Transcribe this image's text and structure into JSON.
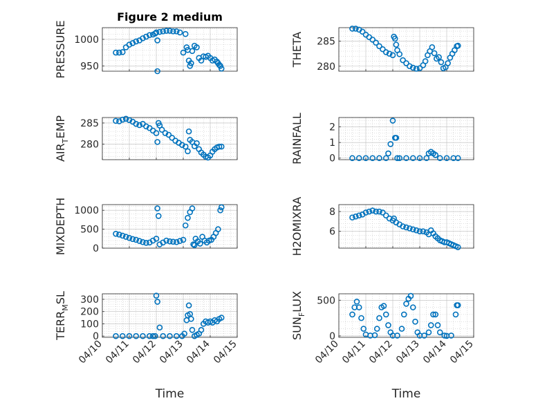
{
  "colors": {
    "marker": "#0072BD",
    "axis": "#262626",
    "grid": "#bdbdbd",
    "background": "#ffffff"
  },
  "chart_data": [
    {
      "type": "scatter",
      "panel": "pressure",
      "title": "Figure 2 medium",
      "ylabel": "PRESSURE",
      "xlabel": "",
      "xlim": [
        "04/10",
        "04/15"
      ],
      "ylim": [
        940,
        1022
      ],
      "yticks": [
        950,
        1000
      ],
      "grid": true,
      "series": [
        {
          "x": [
            "04/10 12:00",
            "04/10 15:00",
            "04/10 18:00",
            "04/10 21:00",
            "04/11 00:00",
            "04/11 03:00",
            "04/11 06:00",
            "04/11 09:00",
            "04/11 12:00",
            "04/11 15:00",
            "04/11 18:00",
            "04/11 21:00",
            "04/11 23:00",
            "04/12 00:00",
            "04/12 01:00",
            "04/12 01:00",
            "04/12 03:00",
            "04/12 06:00",
            "04/12 09:00",
            "04/12 12:00",
            "04/12 15:00",
            "04/12 18:00",
            "04/12 21:00",
            "04/13 00:00",
            "04/13 02:00",
            "04/13 03:00",
            "04/13 04:00",
            "04/13 05:00",
            "04/13 06:00",
            "04/13 07:00",
            "04/13 08:00",
            "04/13 10:00",
            "04/13 12:00",
            "04/13 14:00",
            "04/13 16:00",
            "04/13 18:00",
            "04/13 20:00",
            "04/13 22:00",
            "04/14 00:00",
            "04/14 02:00",
            "04/14 04:00",
            "04/14 06:00",
            "04/14 07:00",
            "04/14 08:00",
            "04/14 09:00",
            "04/14 10:00"
          ],
          "y": [
            975,
            975,
            976,
            985,
            990,
            993,
            996,
            998,
            1002,
            1005,
            1008,
            1009,
            1011,
            1013,
            940,
            998,
            1014,
            1015,
            1016,
            1016,
            1015,
            1015,
            1013,
            975,
            1010,
            985,
            980,
            960,
            950,
            955,
            978,
            988,
            985,
            965,
            960,
            968,
            967,
            969,
            965,
            960,
            962,
            958,
            955,
            952,
            950,
            945
          ]
        }
      ]
    },
    {
      "type": "scatter",
      "panel": "theta",
      "title": "",
      "ylabel": "THETA",
      "xlabel": "",
      "xlim": [
        "04/10",
        "04/15"
      ],
      "ylim": [
        279,
        287.7
      ],
      "yticks": [
        280,
        285
      ],
      "grid": true,
      "series": [
        {
          "x": [
            "04/10 12:00",
            "04/10 15:00",
            "04/10 18:00",
            "04/10 21:00",
            "04/11 00:00",
            "04/11 03:00",
            "04/11 06:00",
            "04/11 09:00",
            "04/11 12:00",
            "04/11 15:00",
            "04/11 18:00",
            "04/11 21:00",
            "04/12 00:00",
            "04/12 01:00",
            "04/12 02:00",
            "04/12 03:00",
            "04/12 04:00",
            "04/12 06:00",
            "04/12 09:00",
            "04/12 12:00",
            "04/12 15:00",
            "04/12 18:00",
            "04/12 21:00",
            "04/13 00:00",
            "04/13 03:00",
            "04/13 05:00",
            "04/13 07:00",
            "04/13 09:00",
            "04/13 11:00",
            "04/13 13:00",
            "04/13 15:00",
            "04/13 17:00",
            "04/13 19:00",
            "04/13 21:00",
            "04/13 23:00",
            "04/14 01:00",
            "04/14 03:00",
            "04/14 05:00",
            "04/14 07:00",
            "04/14 09:00",
            "04/14 10:00"
          ],
          "y": [
            287.5,
            287.5,
            287.3,
            286.9,
            286.3,
            285.8,
            285.3,
            284.7,
            284.0,
            283.4,
            282.8,
            282.5,
            282.2,
            285.9,
            285.5,
            284.3,
            283.2,
            282.4,
            281.2,
            280.6,
            280.0,
            279.7,
            279.5,
            279.6,
            280.2,
            281.0,
            282.2,
            283.0,
            283.8,
            282.6,
            281.5,
            281.8,
            280.8,
            279.6,
            279.8,
            280.6,
            281.7,
            282.5,
            283.2,
            284.0,
            284.1
          ]
        }
      ]
    },
    {
      "type": "scatter",
      "panel": "air_temp",
      "title": "",
      "ylabel": "AIR",
      "ylabel_sub": "T",
      "ylabel_rest": "EMP",
      "xlabel": "",
      "xlim": [
        "04/10",
        "04/15"
      ],
      "ylim": [
        276.3,
        286.3
      ],
      "yticks": [
        280,
        285
      ],
      "grid": true,
      "series": [
        {
          "x": [
            "04/10 12:00",
            "04/10 15:00",
            "04/10 18:00",
            "04/10 21:00",
            "04/11 00:00",
            "04/11 03:00",
            "04/11 06:00",
            "04/11 09:00",
            "04/11 12:00",
            "04/11 15:00",
            "04/11 18:00",
            "04/11 21:00",
            "04/12 00:00",
            "04/12 01:00",
            "04/12 02:00",
            "04/12 03:00",
            "04/12 05:00",
            "04/12 08:00",
            "04/12 11:00",
            "04/12 14:00",
            "04/12 17:00",
            "04/12 20:00",
            "04/12 23:00",
            "04/13 02:00",
            "04/13 04:00",
            "04/13 05:00",
            "04/13 06:00",
            "04/13 08:00",
            "04/13 10:00",
            "04/13 12:00",
            "04/13 14:00",
            "04/13 16:00",
            "04/13 18:00",
            "04/13 20:00",
            "04/13 22:00",
            "04/14 00:00",
            "04/14 02:00",
            "04/14 04:00",
            "04/14 06:00",
            "04/14 08:00",
            "04/14 10:00"
          ],
          "y": [
            285.5,
            285.4,
            285.8,
            286.0,
            285.7,
            285.3,
            284.8,
            284.5,
            284.8,
            284.2,
            283.8,
            283.2,
            282.6,
            280.5,
            285.0,
            284.4,
            283.4,
            282.6,
            282.2,
            281.5,
            280.8,
            280.3,
            279.8,
            279.4,
            278.3,
            283.0,
            281.0,
            280.5,
            279.5,
            280.2,
            278.8,
            278.0,
            277.5,
            277.0,
            276.8,
            277.3,
            278.2,
            278.8,
            279.2,
            279.4,
            279.4
          ]
        }
      ]
    },
    {
      "type": "scatter",
      "panel": "rainfall",
      "title": "",
      "ylabel": "RAINFALL",
      "xlabel": "",
      "xlim": [
        "04/10",
        "04/15"
      ],
      "ylim": [
        -0.1,
        2.6
      ],
      "yticks": [
        0,
        1,
        2
      ],
      "grid": true,
      "series": [
        {
          "x": [
            "04/10 12:00",
            "04/10 18:00",
            "04/11 00:00",
            "04/11 06:00",
            "04/11 12:00",
            "04/11 18:00",
            "04/11 20:00",
            "04/11 22:00",
            "04/12 00:00",
            "04/12 02:00",
            "04/12 03:00",
            "04/12 04:00",
            "04/12 06:00",
            "04/12 12:00",
            "04/12 18:00",
            "04/13 00:00",
            "04/13 06:00",
            "04/13 08:00",
            "04/13 10:00",
            "04/13 12:00",
            "04/13 14:00",
            "04/13 18:00",
            "04/14 00:00",
            "04/14 06:00",
            "04/14 10:00"
          ],
          "y": [
            0,
            0,
            0,
            0,
            0,
            0,
            0.3,
            0.9,
            2.4,
            1.3,
            1.3,
            0,
            0,
            0,
            0,
            0,
            0,
            0.3,
            0.4,
            0.3,
            0.2,
            0,
            0,
            0,
            0
          ]
        }
      ]
    },
    {
      "type": "scatter",
      "panel": "mixdepth",
      "title": "",
      "ylabel": "MIXDEPTH",
      "xlabel": "",
      "xlim": [
        "04/10",
        "04/15"
      ],
      "ylim": [
        0,
        1150
      ],
      "yticks": [
        0,
        500,
        1000
      ],
      "grid": true,
      "series": [
        {
          "x": [
            "04/10 12:00",
            "04/10 15:00",
            "04/10 18:00",
            "04/10 21:00",
            "04/11 00:00",
            "04/11 03:00",
            "04/11 06:00",
            "04/11 09:00",
            "04/11 12:00",
            "04/11 15:00",
            "04/11 18:00",
            "04/11 21:00",
            "04/12 00:00",
            "04/12 01:00",
            "04/12 02:00",
            "04/12 03:00",
            "04/12 06:00",
            "04/12 09:00",
            "04/12 12:00",
            "04/12 15:00",
            "04/12 18:00",
            "04/12 21:00",
            "04/13 00:00",
            "04/13 02:00",
            "04/13 04:00",
            "04/13 06:00",
            "04/13 08:00",
            "04/13 09:00",
            "04/13 10:00",
            "04/13 11:00",
            "04/13 13:00",
            "04/13 15:00",
            "04/13 17:00",
            "04/13 19:00",
            "04/13 21:00",
            "04/13 23:00",
            "04/14 01:00",
            "04/14 03:00",
            "04/14 05:00",
            "04/14 07:00",
            "04/14 09:00",
            "04/14 10:00"
          ],
          "y": [
            380,
            360,
            330,
            300,
            270,
            240,
            220,
            190,
            160,
            140,
            150,
            200,
            250,
            1050,
            850,
            100,
            150,
            200,
            180,
            170,
            160,
            190,
            220,
            600,
            800,
            950,
            1050,
            100,
            80,
            250,
            180,
            120,
            300,
            200,
            150,
            200,
            220,
            300,
            400,
            500,
            1000,
            1080
          ]
        }
      ]
    },
    {
      "type": "scatter",
      "panel": "h2omixra",
      "title": "",
      "ylabel": "H2OMIXRA",
      "xlabel": "",
      "xlim": [
        "04/10",
        "04/15"
      ],
      "ylim": [
        4.3,
        8.7
      ],
      "yticks": [
        6,
        8
      ],
      "grid": true,
      "series": [
        {
          "x": [
            "04/10 12:00",
            "04/10 15:00",
            "04/10 18:00",
            "04/10 21:00",
            "04/11 00:00",
            "04/11 03:00",
            "04/11 06:00",
            "04/11 09:00",
            "04/11 12:00",
            "04/11 15:00",
            "04/11 18:00",
            "04/11 21:00",
            "04/12 00:00",
            "04/12 01:00",
            "04/12 03:00",
            "04/12 06:00",
            "04/12 09:00",
            "04/12 12:00",
            "04/12 15:00",
            "04/12 18:00",
            "04/12 21:00",
            "04/13 00:00",
            "04/13 03:00",
            "04/13 06:00",
            "04/13 08:00",
            "04/13 10:00",
            "04/13 12:00",
            "04/13 14:00",
            "04/13 16:00",
            "04/13 18:00",
            "04/13 20:00",
            "04/13 22:00",
            "04/14 00:00",
            "04/14 02:00",
            "04/14 04:00",
            "04/14 06:00",
            "04/14 08:00",
            "04/14 10:00"
          ],
          "y": [
            7.4,
            7.5,
            7.6,
            7.7,
            7.9,
            8.0,
            8.1,
            8.0,
            8.0,
            7.9,
            7.6,
            7.3,
            7.1,
            7.3,
            6.9,
            6.7,
            6.5,
            6.4,
            6.3,
            6.2,
            6.1,
            6.0,
            6.0,
            5.9,
            5.7,
            6.1,
            5.8,
            5.5,
            5.3,
            5.1,
            5.0,
            4.9,
            4.9,
            4.8,
            4.7,
            4.6,
            4.5,
            4.4
          ]
        }
      ]
    },
    {
      "type": "scatter",
      "panel": "terr_msl",
      "title": "",
      "ylabel": "TERR",
      "ylabel_sub": "M",
      "ylabel_rest": "SL",
      "xlabel": "Time",
      "xlim": [
        "04/10",
        "04/15"
      ],
      "ylim": [
        -10,
        345
      ],
      "yticks": [
        0,
        100,
        200,
        300
      ],
      "xticks": [
        "04/10",
        "04/11",
        "04/12",
        "04/13",
        "04/14",
        "04/15"
      ],
      "grid": true,
      "series": [
        {
          "x": [
            "04/10 12:00",
            "04/10 18:00",
            "04/11 00:00",
            "04/11 06:00",
            "04/11 12:00",
            "04/11 18:00",
            "04/11 21:00",
            "04/11 23:00",
            "04/12 00:00",
            "04/12 01:00",
            "04/12 03:00",
            "04/12 06:00",
            "04/12 12:00",
            "04/12 18:00",
            "04/12 23:00",
            "04/13 01:00",
            "04/13 03:00",
            "04/13 04:00",
            "04/13 05:00",
            "04/13 06:00",
            "04/13 07:00",
            "04/13 08:00",
            "04/13 10:00",
            "04/13 12:00",
            "04/13 14:00",
            "04/13 16:00",
            "04/13 18:00",
            "04/13 20:00",
            "04/13 22:00",
            "04/14 00:00",
            "04/14 02:00",
            "04/14 04:00",
            "04/14 06:00",
            "04/14 08:00",
            "04/14 10:00"
          ],
          "y": [
            0,
            0,
            0,
            0,
            0,
            0,
            0,
            0,
            330,
            280,
            70,
            0,
            0,
            0,
            0,
            20,
            130,
            170,
            250,
            180,
            140,
            50,
            0,
            10,
            20,
            50,
            100,
            120,
            110,
            120,
            110,
            130,
            120,
            140,
            150
          ]
        }
      ]
    },
    {
      "type": "scatter",
      "panel": "sun_flux",
      "title": "",
      "ylabel": "SUN",
      "ylabel_sub": "F",
      "ylabel_rest": "LUX",
      "xlabel": "Time",
      "xlim": [
        "04/10",
        "04/15"
      ],
      "ylim": [
        -20,
        590
      ],
      "yticks": [
        0,
        500
      ],
      "xticks": [
        "04/10",
        "04/11",
        "04/12",
        "04/13",
        "04/14",
        "04/15"
      ],
      "grid": true,
      "series": [
        {
          "x": [
            "04/10 12:00",
            "04/10 14:00",
            "04/10 16:00",
            "04/10 18:00",
            "04/10 20:00",
            "04/10 22:00",
            "04/11 00:00",
            "04/11 04:00",
            "04/11 08:00",
            "04/11 10:00",
            "04/11 12:00",
            "04/11 14:00",
            "04/11 16:00",
            "04/11 18:00",
            "04/11 20:00",
            "04/11 22:00",
            "04/12 00:00",
            "04/12 04:00",
            "04/12 08:00",
            "04/12 10:00",
            "04/12 12:00",
            "04/12 14:00",
            "04/12 16:00",
            "04/12 18:00",
            "04/12 20:00",
            "04/12 22:00",
            "04/13 00:00",
            "04/13 04:00",
            "04/13 08:00",
            "04/13 10:00",
            "04/13 12:00",
            "04/13 14:00",
            "04/13 16:00",
            "04/13 18:00",
            "04/13 22:00",
            "04/14 00:00",
            "04/14 04:00",
            "04/14 08:00",
            "04/14 09:00",
            "04/14 10:00"
          ],
          "y": [
            300,
            400,
            480,
            400,
            250,
            100,
            20,
            5,
            10,
            100,
            250,
            400,
            420,
            300,
            150,
            50,
            5,
            5,
            100,
            300,
            450,
            520,
            560,
            400,
            200,
            50,
            5,
            5,
            50,
            150,
            300,
            300,
            150,
            50,
            5,
            0,
            5,
            300,
            430,
            430
          ]
        }
      ]
    }
  ]
}
